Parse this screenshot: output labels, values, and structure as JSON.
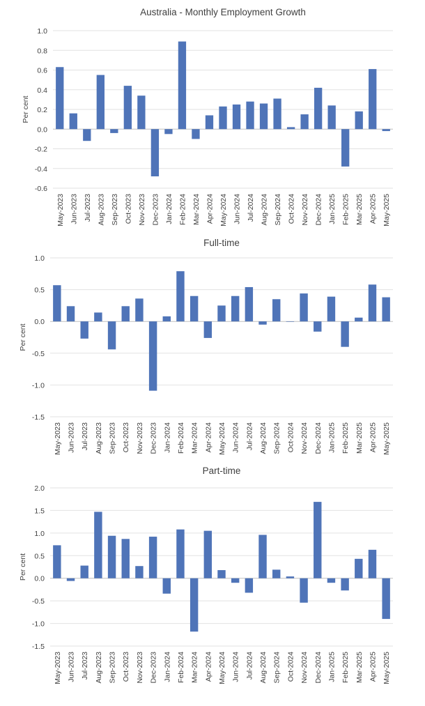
{
  "chart_data": [
    {
      "type": "bar",
      "title": "Australia - Monthly Employment Growth",
      "ylabel": "Per cent",
      "ylim": [
        -0.6,
        1.0
      ],
      "yticks": [
        "1.0",
        "0.8",
        "0.6",
        "0.4",
        "0.2",
        "0.0",
        "-0.2",
        "-0.4",
        "-0.6"
      ],
      "ytick_values": [
        1.0,
        0.8,
        0.6,
        0.4,
        0.2,
        0.0,
        -0.2,
        -0.4,
        -0.6
      ],
      "grid": true,
      "bar_color": "#4f74b8",
      "categories": [
        "May-2023",
        "Jun-2023",
        "Jul-2023",
        "Aug-2023",
        "Sep-2023",
        "Oct-2023",
        "Nov-2023",
        "Dec-2023",
        "Jan-2024",
        "Feb-2024",
        "Mar-2024",
        "Apr-2024",
        "May-2024",
        "Jun-2024",
        "Jul-2024",
        "Aug-2024",
        "Sep-2024",
        "Oct-2024",
        "Nov-2024",
        "Dec-2024",
        "Jan-2025",
        "Feb-2025",
        "Mar-2025",
        "Apr-2025",
        "May-2025"
      ],
      "values": [
        0.63,
        0.16,
        -0.12,
        0.55,
        -0.04,
        0.44,
        0.34,
        -0.48,
        -0.05,
        0.89,
        -0.1,
        0.14,
        0.23,
        0.25,
        0.28,
        0.26,
        0.31,
        0.02,
        0.15,
        0.42,
        0.24,
        -0.38,
        0.18,
        0.61,
        -0.02
      ]
    },
    {
      "type": "bar",
      "title": "Full-time",
      "ylabel": "Per cent",
      "ylim": [
        -1.5,
        1.0
      ],
      "yticks": [
        "1.0",
        "0.5",
        "0.0",
        "-0.5",
        "-1.0",
        "-1.5"
      ],
      "ytick_values": [
        1.0,
        0.5,
        0.0,
        -0.5,
        -1.0,
        -1.5
      ],
      "grid": true,
      "bar_color": "#4f74b8",
      "categories": [
        "May-2023",
        "Jun-2023",
        "Jul-2023",
        "Aug-2023",
        "Sep-2023",
        "Oct-2023",
        "Nov-2023",
        "Dec-2023",
        "Jan-2024",
        "Feb-2024",
        "Mar-2024",
        "Apr-2024",
        "May-2024",
        "Jun-2024",
        "Jul-2024",
        "Aug-2024",
        "Sep-2024",
        "Oct-2024",
        "Nov-2024",
        "Dec-2024",
        "Jan-2025",
        "Feb-2025",
        "Mar-2025",
        "Apr-2025",
        "May-2025"
      ],
      "values": [
        0.57,
        0.24,
        -0.27,
        0.14,
        -0.44,
        0.24,
        0.36,
        -1.09,
        0.08,
        0.79,
        0.4,
        -0.26,
        0.25,
        0.4,
        0.54,
        -0.05,
        0.35,
        0.0,
        0.44,
        -0.16,
        0.39,
        -0.4,
        0.06,
        0.58,
        0.38
      ]
    },
    {
      "type": "bar",
      "title": "Part-time",
      "ylabel": "Per cent",
      "ylim": [
        -1.5,
        2.0
      ],
      "yticks": [
        "2.0",
        "1.5",
        "1.0",
        "0.5",
        "0.0",
        "-0.5",
        "-1.0",
        "-1.5"
      ],
      "ytick_values": [
        2.0,
        1.5,
        1.0,
        0.5,
        0.0,
        -0.5,
        -1.0,
        -1.5
      ],
      "grid": true,
      "bar_color": "#4f74b8",
      "categories": [
        "May-2023",
        "Jun-2023",
        "Jul-2023",
        "Aug-2023",
        "Sep-2023",
        "Oct-2023",
        "Nov-2023",
        "Dec-2023",
        "Jan-2024",
        "Feb-2024",
        "Mar-2024",
        "Apr-2024",
        "May-2024",
        "Jun-2024",
        "Jul-2024",
        "Aug-2024",
        "Sep-2024",
        "Oct-2024",
        "Nov-2024",
        "Dec-2024",
        "Jan-2025",
        "Feb-2025",
        "Mar-2025",
        "Apr-2025",
        "May-2025"
      ],
      "values": [
        0.73,
        -0.06,
        0.28,
        1.47,
        0.94,
        0.87,
        0.27,
        0.92,
        -0.34,
        1.08,
        -1.18,
        1.05,
        0.18,
        -0.1,
        -0.32,
        0.96,
        0.19,
        0.04,
        -0.54,
        1.69,
        -0.1,
        -0.27,
        0.43,
        0.63,
        -0.9
      ]
    }
  ]
}
